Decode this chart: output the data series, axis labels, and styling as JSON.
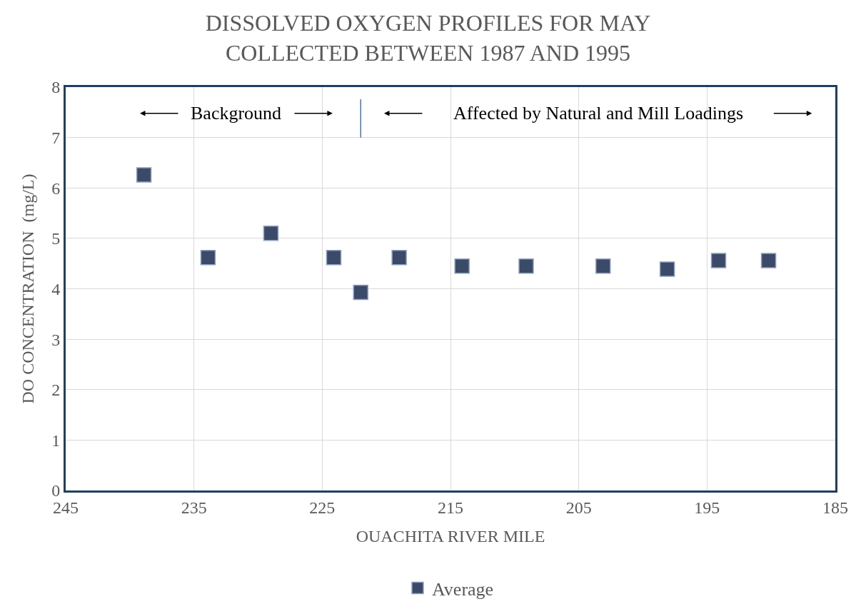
{
  "chart_data": {
    "type": "scatter",
    "title": "DISSOLVED OXYGEN PROFILES FOR MAY\nCOLLECTED BETWEEN 1987 AND 1995",
    "xlabel": "OUACHITA RIVER MILE",
    "ylabel": "DO CONCENTRATION  (mg/L)",
    "x": [
      238.9,
      233.9,
      229.0,
      224.1,
      222.0,
      219.0,
      214.1,
      209.1,
      203.1,
      198.1,
      194.1,
      190.2
    ],
    "series": [
      {
        "name": "Average",
        "color": "#3b4a68",
        "values": [
          6.26,
          4.62,
          5.1,
          4.62,
          3.93,
          4.62,
          4.45,
          4.45,
          4.45,
          4.39,
          4.56,
          4.56
        ]
      }
    ],
    "xlim": [
      245,
      185
    ],
    "xticks": [
      245,
      235,
      225,
      215,
      205,
      195,
      185
    ],
    "ylim": [
      0,
      8
    ],
    "yticks": [
      0,
      1,
      2,
      3,
      4,
      5,
      6,
      7,
      8
    ],
    "ref_lines": [
      {
        "axis": "x",
        "value": 222,
        "color": "#4472c4"
      }
    ],
    "annotations": [
      "Background",
      "Affected by Natural and Mill Loadings"
    ],
    "grid": true,
    "legend": "bottom",
    "marker": "square"
  }
}
